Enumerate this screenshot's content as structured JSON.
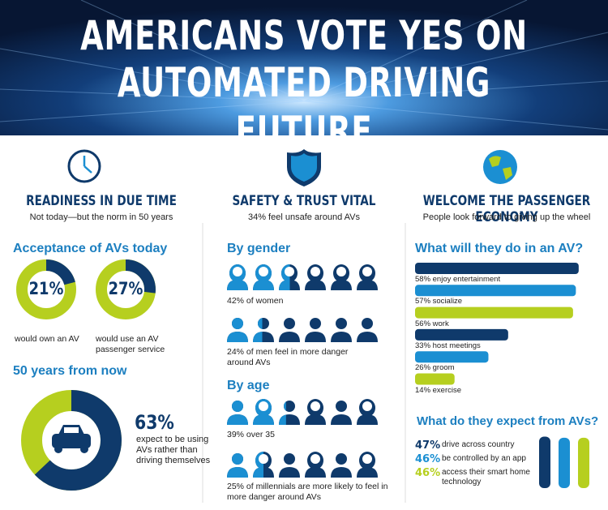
{
  "header": {
    "title_line1": "AMERICANS VOTE YES ON",
    "title_line2": "AUTOMATED DRIVING FUTURE"
  },
  "columns": [
    {
      "heading": "READINESS IN DUE TIME",
      "subheading": "Not today—but the norm in 50 years"
    },
    {
      "heading": "SAFETY & TRUST VITAL",
      "subheading": "34% feel unsafe around AVs"
    },
    {
      "heading": "WELCOME THE PASSENGER ECONOMY",
      "subheading": "People look forward to giving up the wheel"
    }
  ],
  "acceptance": {
    "title": "Acceptance of AVs today",
    "items": [
      {
        "value": 21,
        "value_label": "21%",
        "label": "would own an AV"
      },
      {
        "value": 27,
        "value_label": "27%",
        "label": "would use an AV passenger service"
      }
    ]
  },
  "future": {
    "title": "50 years from now",
    "value": 63,
    "value_label": "63%",
    "label": "expect to be using AVs rather than driving themselves"
  },
  "gender": {
    "title": "By gender",
    "groups": [
      {
        "value": 42,
        "label": "42% of women",
        "kind": "woman"
      },
      {
        "value": 24,
        "label": "24% of men feel in more danger around AVs",
        "kind": "man"
      }
    ]
  },
  "age": {
    "title": "By age",
    "groups": [
      {
        "value": 39,
        "label": "39% over 35",
        "kind": "mixed"
      },
      {
        "value": 25,
        "label": "25% of millennials are more likely to feel in more danger around AVs",
        "kind": "mixed"
      }
    ]
  },
  "activities": {
    "title": "What will they do in an AV?",
    "items": [
      {
        "value": 58,
        "label": "58% enjoy entertainment",
        "color": "#0f3a6b"
      },
      {
        "value": 57,
        "label": "57% socialize",
        "color": "#1b8fd2"
      },
      {
        "value": 56,
        "label": "56% work",
        "color": "#b6cf1f"
      },
      {
        "value": 33,
        "label": "33% host meetings",
        "color": "#0f3a6b"
      },
      {
        "value": 26,
        "label": "26% groom",
        "color": "#1b8fd2"
      },
      {
        "value": 14,
        "label": "14% exercise",
        "color": "#b6cf1f"
      }
    ]
  },
  "expectations": {
    "title": "What do they expect from AVs?",
    "items": [
      {
        "value": 47,
        "value_label": "47%",
        "label": "drive across country",
        "color": "#0f3a6b"
      },
      {
        "value": 46,
        "value_label": "46%",
        "label": "be controlled by an app",
        "color": "#1b8fd2"
      },
      {
        "value": 46,
        "value_label": "46%",
        "label": "access their smart home technology",
        "color": "#b6cf1f"
      }
    ]
  }
}
